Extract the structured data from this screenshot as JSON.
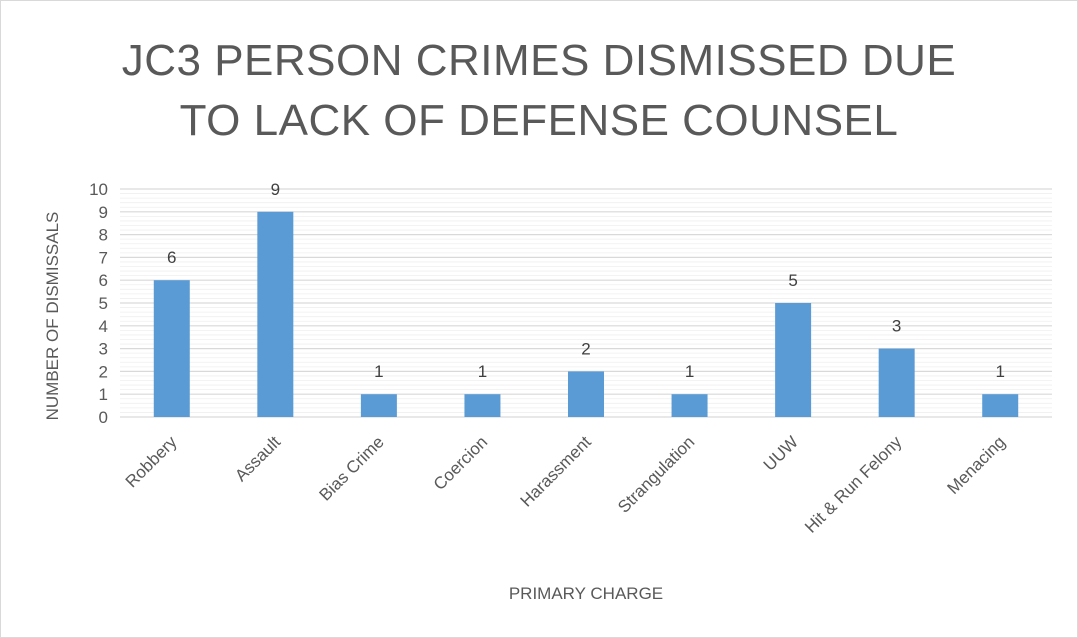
{
  "chart_data": {
    "type": "bar",
    "title": "JC3 PERSON CRIMES DISMISSED DUE TO LACK OF DEFENSE COUNSEL",
    "title_lines": [
      "JC3 PERSON CRIMES DISMISSED DUE",
      "TO LACK OF DEFENSE COUNSEL"
    ],
    "xlabel": "PRIMARY CHARGE",
    "ylabel": "NUMBER OF DISMISSALS",
    "categories": [
      "Robbery",
      "Assault",
      "Bias Crime",
      "Coercion",
      "Harassment",
      "Strangulation",
      "UUW",
      "Hit & Run Felony",
      "Menacing"
    ],
    "values": [
      6,
      9,
      1,
      1,
      2,
      1,
      5,
      3,
      1
    ],
    "ylim": [
      0,
      10
    ],
    "yticks": [
      0,
      1,
      2,
      3,
      4,
      5,
      6,
      7,
      8,
      9,
      10
    ],
    "grid": true,
    "legend": "none",
    "bar_color": "#5b9bd5",
    "grid_color": "#d9d9d9"
  }
}
